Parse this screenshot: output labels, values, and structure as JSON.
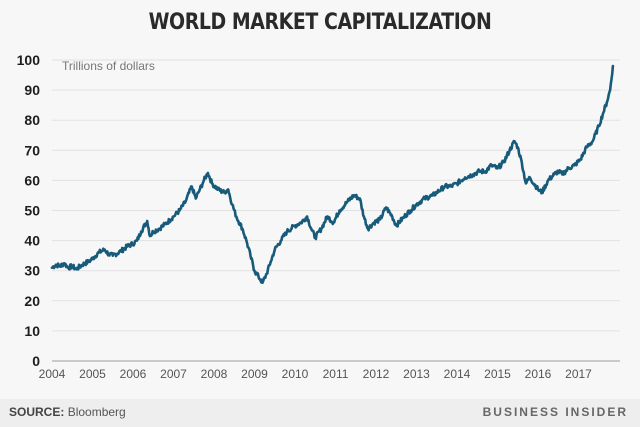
{
  "header": {
    "title": "WORLD MARKET CAPITALIZATION"
  },
  "footer": {
    "source_label": "SOURCE:",
    "source_value": "Bloomberg",
    "brand": "BUSINESS INSIDER"
  },
  "colors": {
    "line": "#175a7a",
    "grid": "#e2e2e2",
    "axis": "#bbbbbb",
    "background": "#f7f7f7",
    "footer_bg": "#eeeeee"
  },
  "chart_data": {
    "type": "line",
    "title": "WORLD MARKET CAPITALIZATION",
    "xlabel": "",
    "ylabel": "Trillions of dollars",
    "ylim": [
      0,
      100
    ],
    "xlim": [
      2004,
      2017.9
    ],
    "yticks": [
      0,
      10,
      20,
      30,
      40,
      50,
      60,
      70,
      80,
      90,
      100
    ],
    "xticks": [
      "2004",
      "2005",
      "2006",
      "2007",
      "2008",
      "2009",
      "2010",
      "2011",
      "2012",
      "2013",
      "2014",
      "2015",
      "2016",
      "2017"
    ],
    "grid": true,
    "series": [
      {
        "name": "World market capitalization",
        "x": [
          2004.0,
          2004.1,
          2004.2,
          2004.3,
          2004.4,
          2004.5,
          2004.6,
          2004.75,
          2004.9,
          2005.0,
          2005.15,
          2005.3,
          2005.4,
          2005.5,
          2005.7,
          2005.85,
          2006.0,
          2006.1,
          2006.2,
          2006.35,
          2006.42,
          2006.5,
          2006.65,
          2006.8,
          2007.0,
          2007.15,
          2007.3,
          2007.45,
          2007.55,
          2007.65,
          2007.75,
          2007.85,
          2007.95,
          2008.1,
          2008.25,
          2008.35,
          2008.45,
          2008.55,
          2008.7,
          2008.8,
          2008.9,
          2009.0,
          2009.1,
          2009.2,
          2009.3,
          2009.4,
          2009.5,
          2009.65,
          2009.8,
          2010.0,
          2010.15,
          2010.3,
          2010.4,
          2010.5,
          2010.65,
          2010.8,
          2010.95,
          2011.1,
          2011.3,
          2011.45,
          2011.6,
          2011.7,
          2011.8,
          2011.95,
          2012.1,
          2012.25,
          2012.4,
          2012.5,
          2012.7,
          2012.85,
          2013.0,
          2013.2,
          2013.4,
          2013.5,
          2013.7,
          2013.85,
          2014.0,
          2014.2,
          2014.4,
          2014.55,
          2014.7,
          2014.85,
          2015.0,
          2015.15,
          2015.3,
          2015.42,
          2015.5,
          2015.6,
          2015.7,
          2015.8,
          2016.0,
          2016.1,
          2016.25,
          2016.4,
          2016.5,
          2016.6,
          2016.75,
          2016.9,
          2017.05,
          2017.2,
          2017.35,
          2017.5,
          2017.6,
          2017.7,
          2017.78,
          2017.85
        ],
        "values": [
          31,
          32,
          31.5,
          32.5,
          31,
          31.5,
          30.5,
          32,
          33,
          34,
          36,
          37,
          35.5,
          35,
          36.5,
          38,
          39,
          40,
          43,
          46.5,
          41.5,
          43,
          44,
          45.5,
          48,
          50,
          53,
          58,
          54,
          57,
          60,
          62.5,
          59,
          57,
          56,
          57,
          52,
          48,
          44,
          40,
          35,
          30,
          28,
          26,
          29,
          33,
          37,
          40,
          43,
          45,
          46,
          48,
          44,
          41,
          44,
          48,
          46,
          50,
          53,
          55,
          54,
          48,
          44,
          46,
          47,
          51,
          48,
          45,
          48,
          50,
          52,
          54,
          55,
          56,
          58,
          58,
          59,
          61,
          62,
          63,
          63,
          65,
          64,
          66,
          70,
          73,
          71,
          66,
          59,
          61,
          57,
          56,
          60,
          62,
          63,
          62,
          64,
          65,
          67,
          71,
          73,
          78,
          82,
          86,
          90,
          98
        ]
      }
    ]
  }
}
